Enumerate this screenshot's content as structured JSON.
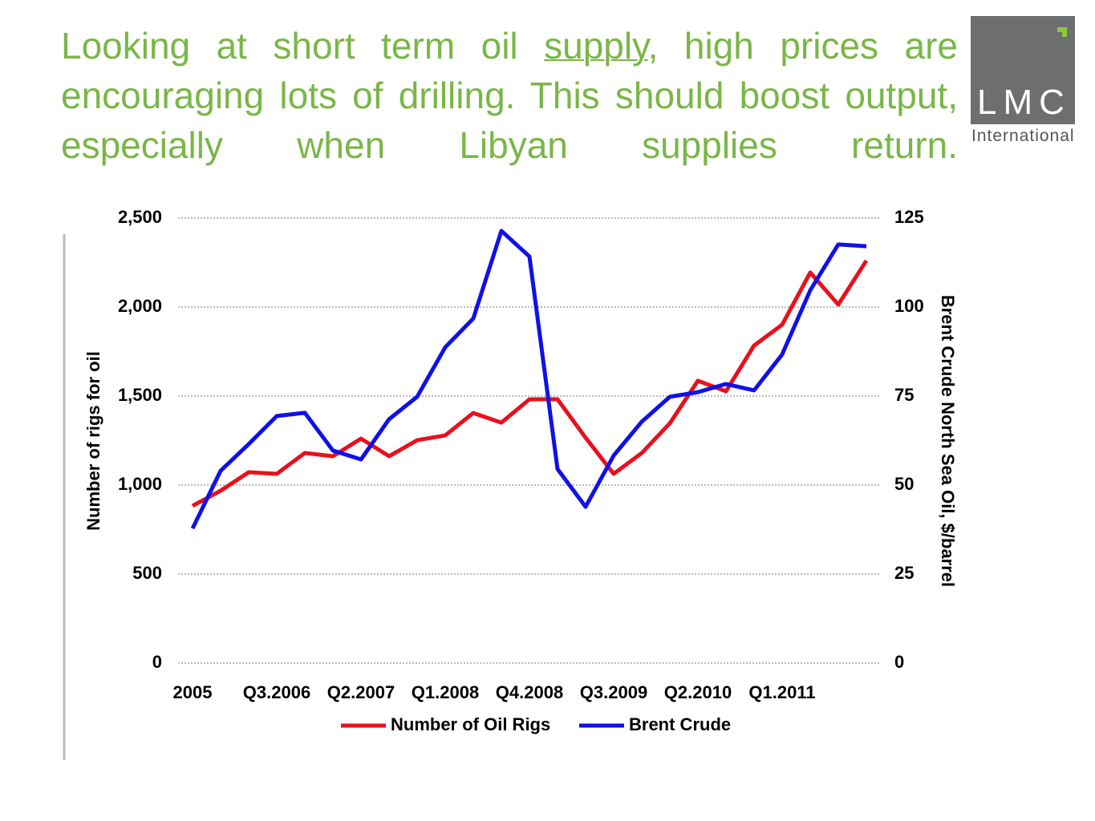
{
  "chart_data": {
    "type": "line",
    "title": [
      "Looking at short term oil ",
      "supply",
      ", high prices are encouraging lots of drilling. This should boost output, especially when Libyan supplies return."
    ],
    "logo": {
      "name": "LMC",
      "subtitle": "International"
    },
    "categories": [
      "2005",
      null,
      null,
      "Q3.2006",
      null,
      null,
      "Q2.2007",
      null,
      null,
      "Q1.2008",
      null,
      null,
      "Q4.2008",
      null,
      null,
      "Q3.2009",
      null,
      null,
      "Q2.2010",
      null,
      null,
      "Q1.2011",
      null,
      null,
      null
    ],
    "series": [
      {
        "name": "Number of Oil Rigs",
        "color": "#e8101c",
        "values": [
          883,
          968,
          1072,
          1063,
          1180,
          1162,
          1261,
          1162,
          1252,
          1279,
          1405,
          1351,
          1482,
          1482,
          1266,
          1063,
          1180,
          1347,
          1586,
          1527,
          1784,
          1901,
          2194,
          2014,
          2261
        ]
      },
      {
        "name": "Brent Crude",
        "color": "#1010e8",
        "axis": "y2",
        "values": [
          37.8,
          54,
          61.5,
          69.4,
          70.3,
          59.7,
          57.2,
          68.5,
          74.8,
          88.7,
          96.8,
          121.4,
          114.2,
          54.5,
          43.9,
          58.3,
          67.8,
          74.8,
          76.1,
          78.4,
          76.6,
          86.7,
          104.7,
          117.6,
          117.1
        ]
      }
    ],
    "ylabel": "Number of rigs for oil",
    "y2label": "Brent Crude North Sea Oil, $/barrel",
    "ylim": [
      0,
      2500
    ],
    "yticks": [
      0,
      500,
      {
        "value": 1000,
        "label": "1,000"
      },
      {
        "value": 1500,
        "label": "1,500"
      },
      {
        "value": 2000,
        "label": "2,000"
      },
      {
        "value": 2500,
        "label": "2,500"
      }
    ],
    "y2lim": [
      0,
      125
    ],
    "y2ticks": [
      0,
      25,
      50,
      75,
      100,
      125
    ],
    "grid": true,
    "legend": "bottom"
  }
}
